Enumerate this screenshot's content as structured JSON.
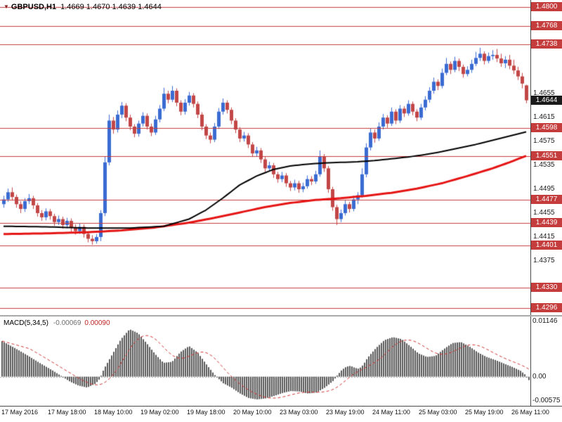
{
  "header": {
    "marker": "▼",
    "symbol": "GBPUSD,H1",
    "ohlc_text": "1.4669 1.4670 1.4639 1.4644"
  },
  "colors": {
    "bull": "#3a6bd2",
    "bear": "#c24646",
    "hline": "#c43c3c",
    "hline_label_bg": "#c43c3c",
    "current_label_bg": "#1a1a1a",
    "ma_fast": "#000000",
    "ma_slow": "#e51414",
    "macd_hist": "#565656",
    "macd_signal": "#cf3434",
    "axis_text": "#1a1a1a"
  },
  "chart_data": {
    "type": "candlestick",
    "title": "GBPUSD,H1 1.4669 1.4670 1.4639 1.4644",
    "symbol": "GBPUSD",
    "timeframe": "H1",
    "legend_position": "none",
    "grid": false,
    "y_axis": {
      "price_top": 1.4812,
      "price_bottom": 1.4283,
      "tick_labels": [
        1.4655,
        1.4615,
        1.4575,
        1.4535,
        1.4495,
        1.4455,
        1.4415,
        1.4375
      ]
    },
    "x_axis": {
      "labels": [
        "17 May 2016",
        "17 May 18:00",
        "18 May 10:00",
        "19 May 02:00",
        "19 May 18:00",
        "20 May 10:00",
        "23 May 03:00",
        "23 May 19:00",
        "24 May 11:00",
        "25 May 03:00",
        "25 May 19:00",
        "26 May 11:00"
      ]
    },
    "horizontal_lines": [
      1.48,
      1.4768,
      1.4738,
      1.4598,
      1.4551,
      1.4477,
      1.4439,
      1.4401,
      1.433,
      1.4296
    ],
    "current_price": 1.4644,
    "last_candle_ohlc": [
      1.4669,
      1.467,
      1.4639,
      1.4644
    ],
    "candles": [
      [
        1.447,
        1.4484,
        1.4464,
        1.4478
      ],
      [
        1.4478,
        1.4496,
        1.4474,
        1.449
      ],
      [
        1.449,
        1.4498,
        1.4476,
        1.4482
      ],
      [
        1.4482,
        1.4486,
        1.4464,
        1.447
      ],
      [
        1.447,
        1.4475,
        1.4455,
        1.4462
      ],
      [
        1.4462,
        1.448,
        1.4457,
        1.4475
      ],
      [
        1.4475,
        1.4487,
        1.447,
        1.448
      ],
      [
        1.448,
        1.4484,
        1.4462,
        1.4468
      ],
      [
        1.4468,
        1.4472,
        1.4449,
        1.4455
      ],
      [
        1.4455,
        1.446,
        1.4442,
        1.4448
      ],
      [
        1.4448,
        1.4463,
        1.4443,
        1.4458
      ],
      [
        1.4458,
        1.4462,
        1.4444,
        1.445
      ],
      [
        1.445,
        1.4454,
        1.4434,
        1.444
      ],
      [
        1.444,
        1.4451,
        1.4435,
        1.4445
      ],
      [
        1.4445,
        1.4449,
        1.4429,
        1.4435
      ],
      [
        1.4435,
        1.4447,
        1.443,
        1.4442
      ],
      [
        1.4442,
        1.4446,
        1.4424,
        1.443
      ],
      [
        1.443,
        1.4436,
        1.4419,
        1.4425
      ],
      [
        1.4425,
        1.4438,
        1.442,
        1.4432
      ],
      [
        1.4432,
        1.4436,
        1.4414,
        1.442
      ],
      [
        1.442,
        1.4424,
        1.4406,
        1.4412
      ],
      [
        1.4412,
        1.4418,
        1.4402,
        1.4408
      ],
      [
        1.4408,
        1.442,
        1.4404,
        1.4415
      ],
      [
        1.4415,
        1.446,
        1.4408,
        1.4455
      ],
      [
        1.4455,
        1.455,
        1.445,
        1.454
      ],
      [
        1.454,
        1.462,
        1.4535,
        1.461
      ],
      [
        1.461,
        1.4616,
        1.4588,
        1.4595
      ],
      [
        1.4595,
        1.4627,
        1.459,
        1.462
      ],
      [
        1.462,
        1.4641,
        1.4614,
        1.4635
      ],
      [
        1.4635,
        1.4639,
        1.4609,
        1.4615
      ],
      [
        1.4615,
        1.462,
        1.4594,
        1.46
      ],
      [
        1.46,
        1.4604,
        1.4582,
        1.4588
      ],
      [
        1.4588,
        1.461,
        1.4583,
        1.4605
      ],
      [
        1.4605,
        1.4624,
        1.46,
        1.4618
      ],
      [
        1.4618,
        1.4622,
        1.4595,
        1.46
      ],
      [
        1.46,
        1.4605,
        1.4584,
        1.459
      ],
      [
        1.459,
        1.4618,
        1.4586,
        1.4612
      ],
      [
        1.4612,
        1.4636,
        1.4607,
        1.463
      ],
      [
        1.463,
        1.4665,
        1.4626,
        1.4655
      ],
      [
        1.4655,
        1.466,
        1.4639,
        1.4645
      ],
      [
        1.4645,
        1.4668,
        1.4641,
        1.466
      ],
      [
        1.466,
        1.4664,
        1.4634,
        1.464
      ],
      [
        1.464,
        1.4644,
        1.4619,
        1.4625
      ],
      [
        1.4625,
        1.4646,
        1.462,
        1.464
      ],
      [
        1.464,
        1.4658,
        1.4635,
        1.4652
      ],
      [
        1.4652,
        1.4656,
        1.4632,
        1.4638
      ],
      [
        1.4638,
        1.4642,
        1.4614,
        1.462
      ],
      [
        1.462,
        1.4624,
        1.4594,
        1.46
      ],
      [
        1.46,
        1.4604,
        1.4579,
        1.4585
      ],
      [
        1.4585,
        1.459,
        1.4572,
        1.4578
      ],
      [
        1.4578,
        1.4606,
        1.4574,
        1.46
      ],
      [
        1.46,
        1.4631,
        1.4596,
        1.4625
      ],
      [
        1.4625,
        1.4647,
        1.462,
        1.464
      ],
      [
        1.464,
        1.4644,
        1.4622,
        1.4628
      ],
      [
        1.4628,
        1.4632,
        1.4604,
        1.461
      ],
      [
        1.461,
        1.4614,
        1.4589,
        1.4595
      ],
      [
        1.4595,
        1.4599,
        1.4574,
        1.458
      ],
      [
        1.458,
        1.4591,
        1.4575,
        1.4585
      ],
      [
        1.4585,
        1.4589,
        1.4564,
        1.457
      ],
      [
        1.457,
        1.4574,
        1.4549,
        1.4555
      ],
      [
        1.4555,
        1.4566,
        1.455,
        1.456
      ],
      [
        1.456,
        1.4564,
        1.4539,
        1.4545
      ],
      [
        1.4545,
        1.4549,
        1.4524,
        1.453
      ],
      [
        1.453,
        1.4541,
        1.4525,
        1.4535
      ],
      [
        1.4535,
        1.4539,
        1.4514,
        1.452
      ],
      [
        1.452,
        1.4524,
        1.4506,
        1.4512
      ],
      [
        1.4512,
        1.4524,
        1.4507,
        1.4518
      ],
      [
        1.4518,
        1.4522,
        1.4499,
        1.4505
      ],
      [
        1.4505,
        1.4509,
        1.4492,
        1.4498
      ],
      [
        1.4498,
        1.4511,
        1.4493,
        1.4505
      ],
      [
        1.4505,
        1.4509,
        1.4489,
        1.4495
      ],
      [
        1.4495,
        1.4506,
        1.449,
        1.45
      ],
      [
        1.45,
        1.4518,
        1.4496,
        1.4512
      ],
      [
        1.4512,
        1.4517,
        1.4502,
        1.4508
      ],
      [
        1.4508,
        1.4526,
        1.4504,
        1.452
      ],
      [
        1.452,
        1.456,
        1.4516,
        1.455
      ],
      [
        1.455,
        1.4554,
        1.4524,
        1.453
      ],
      [
        1.453,
        1.4534,
        1.4489,
        1.4495
      ],
      [
        1.4495,
        1.4499,
        1.4459,
        1.4465
      ],
      [
        1.4465,
        1.4469,
        1.4435,
        1.4445
      ],
      [
        1.4445,
        1.4461,
        1.444,
        1.4455
      ],
      [
        1.4455,
        1.4476,
        1.4451,
        1.447
      ],
      [
        1.447,
        1.4474,
        1.4456,
        1.4462
      ],
      [
        1.4462,
        1.4484,
        1.4458,
        1.4478
      ],
      [
        1.4478,
        1.449,
        1.447,
        1.4485
      ],
      [
        1.4485,
        1.453,
        1.4481,
        1.452
      ],
      [
        1.452,
        1.4572,
        1.4515,
        1.4565
      ],
      [
        1.4565,
        1.4597,
        1.456,
        1.459
      ],
      [
        1.459,
        1.4595,
        1.4573,
        1.458
      ],
      [
        1.458,
        1.4607,
        1.4576,
        1.46
      ],
      [
        1.46,
        1.4621,
        1.4595,
        1.4615
      ],
      [
        1.4615,
        1.4619,
        1.4598,
        1.4605
      ],
      [
        1.4605,
        1.4632,
        1.4601,
        1.4625
      ],
      [
        1.4625,
        1.4629,
        1.4604,
        1.461
      ],
      [
        1.461,
        1.4636,
        1.4606,
        1.463
      ],
      [
        1.463,
        1.4634,
        1.4616,
        1.4622
      ],
      [
        1.4622,
        1.4644,
        1.4618,
        1.4638
      ],
      [
        1.4638,
        1.4642,
        1.4619,
        1.4625
      ],
      [
        1.4625,
        1.4629,
        1.4609,
        1.4615
      ],
      [
        1.4615,
        1.4638,
        1.4611,
        1.4632
      ],
      [
        1.4632,
        1.4651,
        1.4627,
        1.4645
      ],
      [
        1.4645,
        1.4666,
        1.464,
        1.466
      ],
      [
        1.466,
        1.4682,
        1.4655,
        1.4675
      ],
      [
        1.4675,
        1.4679,
        1.4661,
        1.4668
      ],
      [
        1.4668,
        1.4697,
        1.4664,
        1.469
      ],
      [
        1.469,
        1.4715,
        1.4686,
        1.4705
      ],
      [
        1.4705,
        1.4709,
        1.4688,
        1.4695
      ],
      [
        1.4695,
        1.4717,
        1.4691,
        1.471
      ],
      [
        1.471,
        1.4714,
        1.4693,
        1.47
      ],
      [
        1.47,
        1.4704,
        1.4682,
        1.4688
      ],
      [
        1.4688,
        1.4701,
        1.4684,
        1.4695
      ],
      [
        1.4695,
        1.4712,
        1.469,
        1.4705
      ],
      [
        1.4705,
        1.4725,
        1.4701,
        1.4715
      ],
      [
        1.4715,
        1.4732,
        1.471,
        1.4722
      ],
      [
        1.4722,
        1.4726,
        1.4704,
        1.471
      ],
      [
        1.471,
        1.4724,
        1.4706,
        1.4718
      ],
      [
        1.4718,
        1.4728,
        1.4712,
        1.472
      ],
      [
        1.472,
        1.473,
        1.4708,
        1.4714
      ],
      [
        1.4714,
        1.4722,
        1.47,
        1.4706
      ],
      [
        1.4706,
        1.4718,
        1.4698,
        1.4712
      ],
      [
        1.4712,
        1.472,
        1.4696,
        1.4702
      ],
      [
        1.4702,
        1.4712,
        1.4688,
        1.4694
      ],
      [
        1.4694,
        1.47,
        1.4678,
        1.4684
      ],
      [
        1.4684,
        1.469,
        1.4664,
        1.4672
      ],
      [
        1.4669,
        1.467,
        1.4639,
        1.4644
      ]
    ],
    "overlays": {
      "ma_fast_waypoints": [
        [
          0,
          1.4433
        ],
        [
          10,
          1.4432
        ],
        [
          20,
          1.443
        ],
        [
          30,
          1.443
        ],
        [
          38,
          1.4433
        ],
        [
          44,
          1.4445
        ],
        [
          48,
          1.446
        ],
        [
          52,
          1.448
        ],
        [
          56,
          1.4502
        ],
        [
          60,
          1.4517
        ],
        [
          64,
          1.4528
        ],
        [
          68,
          1.4534
        ],
        [
          72,
          1.4537
        ],
        [
          76,
          1.4539
        ],
        [
          80,
          1.454
        ],
        [
          84,
          1.4541
        ],
        [
          88,
          1.4543
        ],
        [
          92,
          1.4546
        ],
        [
          96,
          1.4549
        ],
        [
          100,
          1.4553
        ],
        [
          104,
          1.4558
        ],
        [
          108,
          1.4564
        ],
        [
          112,
          1.457
        ],
        [
          116,
          1.4577
        ],
        [
          120,
          1.4584
        ],
        [
          124,
          1.4591
        ]
      ],
      "ma_slow_waypoints": [
        [
          0,
          1.442
        ],
        [
          10,
          1.4421
        ],
        [
          20,
          1.4423
        ],
        [
          28,
          1.4426
        ],
        [
          36,
          1.4431
        ],
        [
          44,
          1.4439
        ],
        [
          50,
          1.4447
        ],
        [
          56,
          1.4456
        ],
        [
          62,
          1.4465
        ],
        [
          68,
          1.4472
        ],
        [
          74,
          1.4477
        ],
        [
          80,
          1.448
        ],
        [
          86,
          1.4484
        ],
        [
          92,
          1.4489
        ],
        [
          98,
          1.4496
        ],
        [
          104,
          1.4505
        ],
        [
          110,
          1.4517
        ],
        [
          116,
          1.453
        ],
        [
          120,
          1.454
        ],
        [
          124,
          1.4551
        ]
      ]
    },
    "indicator": {
      "type": "macd_histogram",
      "label": "MACD(5,34,5)",
      "value_main": "-0.00069",
      "value_signal": "0.00090",
      "scale": {
        "top": 0.01146,
        "zero": 0,
        "bottom": -0.00575
      },
      "scale_labels": [
        "0.01146",
        "0.00",
        "-0.00575"
      ],
      "histogram_waypoints": [
        [
          0,
          0.0072
        ],
        [
          3,
          0.0058
        ],
        [
          6,
          0.0043
        ],
        [
          9,
          0.0027
        ],
        [
          12,
          0.0012
        ],
        [
          14,
          0.0001
        ],
        [
          16,
          -0.001
        ],
        [
          18,
          -0.0018
        ],
        [
          20,
          -0.0022
        ],
        [
          22,
          -0.0014
        ],
        [
          23,
          -0.0004
        ],
        [
          24,
          0.0016
        ],
        [
          26,
          0.0046
        ],
        [
          28,
          0.0076
        ],
        [
          30,
          0.0096
        ],
        [
          32,
          0.0088
        ],
        [
          34,
          0.0068
        ],
        [
          36,
          0.0046
        ],
        [
          38,
          0.0028
        ],
        [
          40,
          0.003
        ],
        [
          42,
          0.005
        ],
        [
          44,
          0.0062
        ],
        [
          46,
          0.0049
        ],
        [
          48,
          0.0026
        ],
        [
          50,
          0.0004
        ],
        [
          52,
          -0.0013
        ],
        [
          54,
          -0.0022
        ],
        [
          56,
          -0.0034
        ],
        [
          58,
          -0.0043
        ],
        [
          60,
          -0.0046
        ],
        [
          62,
          -0.0044
        ],
        [
          64,
          -0.0039
        ],
        [
          66,
          -0.0033
        ],
        [
          68,
          -0.0029
        ],
        [
          70,
          -0.003
        ],
        [
          72,
          -0.0034
        ],
        [
          74,
          -0.0032
        ],
        [
          76,
          -0.0022
        ],
        [
          78,
          -0.0008
        ],
        [
          79,
          0.0004
        ],
        [
          80,
          0.0014
        ],
        [
          81,
          0.002
        ],
        [
          82,
          0.0022
        ],
        [
          83,
          0.0018
        ],
        [
          84,
          0.0016
        ],
        [
          85,
          0.0024
        ],
        [
          86,
          0.0038
        ],
        [
          88,
          0.0058
        ],
        [
          90,
          0.0074
        ],
        [
          92,
          0.008
        ],
        [
          94,
          0.0076
        ],
        [
          96,
          0.0062
        ],
        [
          98,
          0.0047
        ],
        [
          100,
          0.004
        ],
        [
          102,
          0.0042
        ],
        [
          104,
          0.0056
        ],
        [
          106,
          0.0068
        ],
        [
          108,
          0.007
        ],
        [
          110,
          0.0061
        ],
        [
          112,
          0.0049
        ],
        [
          114,
          0.004
        ],
        [
          116,
          0.0034
        ],
        [
          118,
          0.0027
        ],
        [
          120,
          0.002
        ],
        [
          122,
          0.0012
        ],
        [
          123,
          0.0005
        ],
        [
          124,
          -0.0007
        ]
      ]
    }
  }
}
